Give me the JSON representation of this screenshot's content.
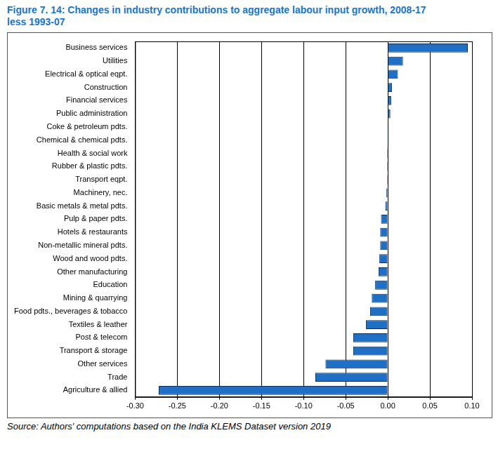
{
  "chart_data": {
    "type": "bar",
    "title": "Figure 7. 14: Changes in industry contributions to aggregate labour input growth, 2008-17 less 1993-07",
    "source": "Source: Authors' computations based on the India KLEMS Dataset version 2019",
    "orientation": "horizontal",
    "categories": [
      "Business services",
      "Utilities",
      "Electrical & optical eqpt.",
      "Construction",
      "Financial services",
      "Public administration",
      "Coke & petroleum pdts.",
      "Chemical & chemical pdts.",
      "Health & social work",
      "Rubber & plastic pdts.",
      "Transport eqpt.",
      "Machinery, nec.",
      "Basic metals & metal pdts.",
      "Pulp & paper pdts.",
      "Hotels & restaurants",
      "Non-metallic mineral pdts.",
      "Wood and wood pdts.",
      "Other manufacturing",
      "Education",
      "Mining & quarrying",
      "Food pdts., beverages & tobacco",
      "Textiles & leather",
      "Post & telecom",
      "Transport & storage",
      "Other services",
      "Trade",
      "Agriculture & allied"
    ],
    "values": [
      0.095,
      0.018,
      0.012,
      0.005,
      0.004,
      0.003,
      0.001,
      0.001,
      -0.001,
      -0.001,
      -0.001,
      -0.002,
      -0.003,
      -0.008,
      -0.009,
      -0.009,
      -0.01,
      -0.011,
      -0.015,
      -0.019,
      -0.021,
      -0.026,
      -0.041,
      -0.041,
      -0.074,
      -0.086,
      -0.272
    ],
    "color": "#1f6fc5",
    "xlim": [
      -0.3,
      0.1
    ],
    "xticks": [
      {
        "value": -0.3,
        "label": "-0.30"
      },
      {
        "value": -0.25,
        "label": "-0.25"
      },
      {
        "value": -0.2,
        "label": "-0.20"
      },
      {
        "value": -0.15,
        "label": "-0.15"
      },
      {
        "value": -0.1,
        "label": "-0.10"
      },
      {
        "value": -0.05,
        "label": "-0.05"
      },
      {
        "value": 0,
        "label": "0.00"
      },
      {
        "value": 0.05,
        "label": "0.05"
      },
      {
        "value": 0.1,
        "label": "0.10"
      }
    ],
    "grid": true
  }
}
